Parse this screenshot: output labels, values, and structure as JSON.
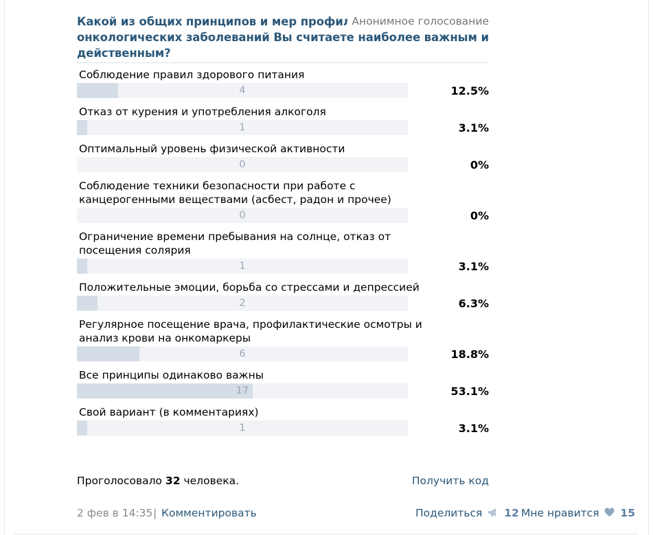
{
  "poll": {
    "question": "Какой из общих принципов и мер профилактики онкологических заболеваний Вы считаете наиболее важным и действенным?",
    "type_label": "Анонимное голосование",
    "answers": [
      {
        "text": "Соблюдение правил здорового питания",
        "count": "4",
        "percent": "12.5%",
        "fraction": 0.125
      },
      {
        "text": "Отказ от курения и употребления алкоголя",
        "count": "1",
        "percent": "3.1%",
        "fraction": 0.031
      },
      {
        "text": "Оптимальный уровень физической активности",
        "count": "0",
        "percent": "0%",
        "fraction": 0
      },
      {
        "text": "Соблюдение техники безопасности при работе с канцерогенными веществами (асбест, радон и прочее)",
        "count": "0",
        "percent": "0%",
        "fraction": 0
      },
      {
        "text": "Ограничение времени пребывания на солнце, отказ от посещения солярия",
        "count": "1",
        "percent": "3.1%",
        "fraction": 0.031
      },
      {
        "text": "Положительные эмоции, борьба со стрессами и депрессией",
        "count": "2",
        "percent": "6.3%",
        "fraction": 0.063
      },
      {
        "text": "Регулярное посещение врача, профилактические осмотры и анализ крови на онкомаркеры",
        "count": "6",
        "percent": "18.8%",
        "fraction": 0.188
      },
      {
        "text": "Все принципы одинаково важны",
        "count": "17",
        "percent": "53.1%",
        "fraction": 0.531
      },
      {
        "text": "Свой вариант (в комментариях)",
        "count": "1",
        "percent": "3.1%",
        "fraction": 0.031
      }
    ],
    "total_prefix": "Проголосовало",
    "total_count": "32",
    "total_suffix": "человека.",
    "get_code_label": "Получить код"
  },
  "post": {
    "date": "2 фев в 14:35",
    "separator": "|",
    "comment_label": "Комментировать",
    "share_label": "Поделиться",
    "share_icon": "megaphone-icon",
    "share_count": "12",
    "like_label": "Мне нравится",
    "like_icon": "heart-icon",
    "like_count": "15"
  },
  "colors": {
    "link": "#2b587a",
    "bar_fill": "#d5dde6",
    "bar_track": "#f1f3f6",
    "count_text": "#9aa7b7"
  }
}
